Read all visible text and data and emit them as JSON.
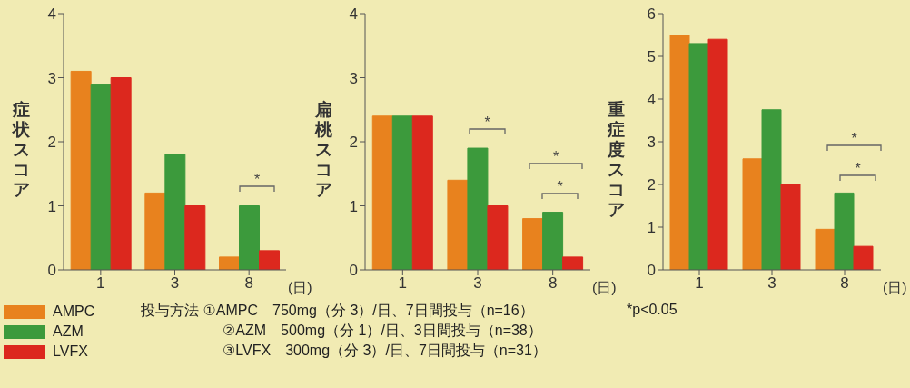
{
  "chart_data": [
    {
      "type": "bar",
      "ylabel": "症状スコア",
      "xlabel": "(日)",
      "categories": [
        "1",
        "3",
        "8"
      ],
      "ylim": [
        0,
        4
      ],
      "yticks": [
        0,
        1,
        2,
        3,
        4
      ],
      "legend": "bottom left",
      "series": [
        {
          "name": "AMPC",
          "color": "#e8821e",
          "values": [
            3.1,
            1.2,
            0.2
          ]
        },
        {
          "name": "AZM",
          "color": "#3c9a3c",
          "values": [
            2.9,
            1.8,
            1.0
          ]
        },
        {
          "name": "LVFX",
          "color": "#dc281e",
          "values": [
            3.0,
            1.0,
            0.3
          ]
        }
      ],
      "annotations": [
        "*",
        "投与方法 ①AMPC　750mg（分 3）/日、7日間投与（n=16）",
        "②AZM　500mg（分 1）/日、3日間投与（n=38）",
        "③LVFX　300mg（分 3）/日、7日間投与（n=31）"
      ]
    },
    {
      "type": "bar",
      "ylabel": "扁桃スコア",
      "xlabel": "(日)",
      "categories": [
        "1",
        "3",
        "8"
      ],
      "ylim": [
        0,
        4
      ],
      "yticks": [
        0,
        1,
        2,
        3,
        4
      ],
      "series": [
        {
          "color": "#e8821e",
          "values": [
            2.4,
            1.4,
            0.8
          ]
        },
        {
          "color": "#3c9a3c",
          "values": [
            2.4,
            1.9,
            0.9
          ]
        },
        {
          "color": "#dc281e",
          "values": [
            2.4,
            1.0,
            0.2
          ]
        }
      ],
      "annotations": [
        "*",
        "*",
        "*"
      ]
    },
    {
      "type": "bar",
      "ylabel": "重症度スコア",
      "xlabel": "(日)",
      "categories": [
        "1",
        "3",
        "8"
      ],
      "ylim": [
        0,
        6
      ],
      "yticks": [
        0,
        1,
        2,
        3,
        4,
        5,
        6
      ],
      "series": [
        {
          "color": "#e8821e",
          "values": [
            5.5,
            2.6,
            0.95
          ]
        },
        {
          "color": "#3c9a3c",
          "values": [
            5.3,
            3.75,
            1.8
          ]
        },
        {
          "color": "#dc281e",
          "values": [
            5.4,
            2.0,
            0.55
          ]
        }
      ],
      "annotations": [
        "*",
        "*",
        "*p<0.05"
      ]
    }
  ]
}
